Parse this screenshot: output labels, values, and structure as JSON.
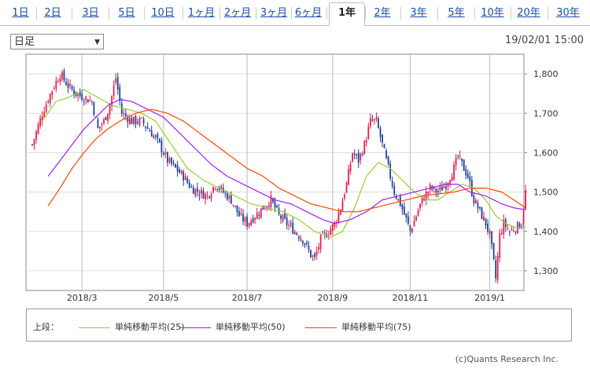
{
  "tabs": [
    {
      "label": "1日"
    },
    {
      "label": "2日"
    },
    {
      "label": "3日"
    },
    {
      "label": "5日"
    },
    {
      "label": "10日"
    },
    {
      "label": "1ヶ月"
    },
    {
      "label": "2ヶ月"
    },
    {
      "label": "3ヶ月"
    },
    {
      "label": "6ヶ月"
    },
    {
      "label": "1年",
      "active": true
    },
    {
      "label": "2年"
    },
    {
      "label": "3年"
    },
    {
      "label": "5年"
    },
    {
      "label": "10年"
    },
    {
      "label": "20年"
    },
    {
      "label": "30年"
    }
  ],
  "period_select": {
    "value": "日足"
  },
  "datetime": "19/02/01 15:00",
  "legend": {
    "label": "上段：",
    "items": [
      {
        "name": "単純移動平均(25)",
        "color": "#9acd32"
      },
      {
        "name": "単純移動平均(50)",
        "color": "#a020f0"
      },
      {
        "name": "単純移動平均(75)",
        "color": "#ff4500"
      }
    ]
  },
  "copyright": "(c)Quants Research Inc.",
  "chart_data": {
    "type": "candlestick",
    "ylim": [
      1250,
      1850
    ],
    "yticks": [
      1300,
      1400,
      1500,
      1600,
      1700,
      1800
    ],
    "ytick_labels": [
      "1,300",
      "1,400",
      "1,500",
      "1,600",
      "1,700",
      "1,800"
    ],
    "x_count": 244,
    "xticks": [
      {
        "index": 25,
        "label": "2018/3"
      },
      {
        "index": 66,
        "label": "2018/5"
      },
      {
        "index": 108,
        "label": "2018/7"
      },
      {
        "index": 151,
        "label": "2018/9"
      },
      {
        "index": 190,
        "label": "2018/11"
      },
      {
        "index": 230,
        "label": "2019/1"
      }
    ],
    "up_color": "#e8194a",
    "down_color": "#1c3f95",
    "price_anchors": [
      [
        0,
        1620
      ],
      [
        5,
        1700
      ],
      [
        10,
        1760
      ],
      [
        14,
        1800
      ],
      [
        18,
        1770
      ],
      [
        22,
        1750
      ],
      [
        26,
        1740
      ],
      [
        30,
        1730
      ],
      [
        33,
        1660
      ],
      [
        36,
        1680
      ],
      [
        39,
        1720
      ],
      [
        42,
        1790
      ],
      [
        45,
        1700
      ],
      [
        50,
        1680
      ],
      [
        55,
        1680
      ],
      [
        60,
        1650
      ],
      [
        64,
        1620
      ],
      [
        68,
        1580
      ],
      [
        72,
        1560
      ],
      [
        76,
        1540
      ],
      [
        80,
        1510
      ],
      [
        84,
        1500
      ],
      [
        88,
        1490
      ],
      [
        92,
        1520
      ],
      [
        96,
        1500
      ],
      [
        100,
        1480
      ],
      [
        104,
        1440
      ],
      [
        108,
        1420
      ],
      [
        112,
        1440
      ],
      [
        116,
        1460
      ],
      [
        120,
        1480
      ],
      [
        124,
        1440
      ],
      [
        128,
        1420
      ],
      [
        132,
        1400
      ],
      [
        136,
        1380
      ],
      [
        140,
        1340
      ],
      [
        142,
        1330
      ],
      [
        145,
        1380
      ],
      [
        149,
        1400
      ],
      [
        152,
        1420
      ],
      [
        155,
        1460
      ],
      [
        158,
        1520
      ],
      [
        161,
        1600
      ],
      [
        164,
        1580
      ],
      [
        167,
        1620
      ],
      [
        170,
        1680
      ],
      [
        173,
        1680
      ],
      [
        176,
        1620
      ],
      [
        179,
        1560
      ],
      [
        182,
        1500
      ],
      [
        185,
        1470
      ],
      [
        188,
        1430
      ],
      [
        190,
        1400
      ],
      [
        193,
        1440
      ],
      [
        196,
        1480
      ],
      [
        200,
        1510
      ],
      [
        204,
        1500
      ],
      [
        208,
        1520
      ],
      [
        212,
        1560
      ],
      [
        214,
        1590
      ],
      [
        216,
        1570
      ],
      [
        219,
        1540
      ],
      [
        222,
        1480
      ],
      [
        225,
        1450
      ],
      [
        228,
        1420
      ],
      [
        230,
        1390
      ],
      [
        232,
        1320
      ],
      [
        233,
        1280
      ],
      [
        235,
        1390
      ],
      [
        237,
        1420
      ],
      [
        240,
        1400
      ],
      [
        243,
        1410
      ],
      [
        246,
        1420
      ],
      [
        248,
        1500
      ]
    ],
    "series": [
      {
        "name": "単純移動平均(25)",
        "color": "#9acd32",
        "anchors": [
          [
            5,
            1680
          ],
          [
            12,
            1730
          ],
          [
            18,
            1740
          ],
          [
            26,
            1760
          ],
          [
            33,
            1740
          ],
          [
            40,
            1720
          ],
          [
            48,
            1710
          ],
          [
            55,
            1700
          ],
          [
            62,
            1680
          ],
          [
            70,
            1620
          ],
          [
            78,
            1560
          ],
          [
            86,
            1530
          ],
          [
            94,
            1510
          ],
          [
            102,
            1490
          ],
          [
            110,
            1470
          ],
          [
            118,
            1460
          ],
          [
            126,
            1450
          ],
          [
            134,
            1430
          ],
          [
            142,
            1400
          ],
          [
            150,
            1385
          ],
          [
            156,
            1400
          ],
          [
            162,
            1460
          ],
          [
            168,
            1540
          ],
          [
            174,
            1575
          ],
          [
            180,
            1560
          ],
          [
            186,
            1530
          ],
          [
            192,
            1500
          ],
          [
            198,
            1480
          ],
          [
            204,
            1480
          ],
          [
            210,
            1500
          ],
          [
            216,
            1520
          ],
          [
            222,
            1510
          ],
          [
            228,
            1480
          ],
          [
            233,
            1440
          ],
          [
            238,
            1420
          ],
          [
            243,
            1410
          ],
          [
            248,
            1410
          ]
        ]
      },
      {
        "name": "単純移動平均(50)",
        "color": "#a020f0",
        "anchors": [
          [
            8,
            1540
          ],
          [
            14,
            1580
          ],
          [
            20,
            1620
          ],
          [
            26,
            1660
          ],
          [
            32,
            1690
          ],
          [
            38,
            1720
          ],
          [
            44,
            1735
          ],
          [
            50,
            1730
          ],
          [
            58,
            1710
          ],
          [
            66,
            1690
          ],
          [
            74,
            1650
          ],
          [
            82,
            1610
          ],
          [
            90,
            1570
          ],
          [
            98,
            1540
          ],
          [
            106,
            1520
          ],
          [
            114,
            1500
          ],
          [
            122,
            1480
          ],
          [
            130,
            1470
          ],
          [
            138,
            1450
          ],
          [
            146,
            1430
          ],
          [
            152,
            1420
          ],
          [
            160,
            1430
          ],
          [
            168,
            1450
          ],
          [
            176,
            1480
          ],
          [
            184,
            1490
          ],
          [
            192,
            1500
          ],
          [
            200,
            1510
          ],
          [
            208,
            1520
          ],
          [
            214,
            1520
          ],
          [
            220,
            1500
          ],
          [
            228,
            1490
          ],
          [
            236,
            1470
          ],
          [
            242,
            1460
          ],
          [
            248,
            1455
          ]
        ]
      },
      {
        "name": "単純移動平均(75)",
        "color": "#ff4500",
        "anchors": [
          [
            8,
            1465
          ],
          [
            14,
            1510
          ],
          [
            20,
            1560
          ],
          [
            26,
            1600
          ],
          [
            32,
            1635
          ],
          [
            38,
            1660
          ],
          [
            44,
            1680
          ],
          [
            52,
            1700
          ],
          [
            60,
            1710
          ],
          [
            68,
            1700
          ],
          [
            76,
            1680
          ],
          [
            84,
            1650
          ],
          [
            92,
            1620
          ],
          [
            100,
            1590
          ],
          [
            108,
            1560
          ],
          [
            116,
            1540
          ],
          [
            124,
            1510
          ],
          [
            132,
            1490
          ],
          [
            140,
            1470
          ],
          [
            148,
            1460
          ],
          [
            156,
            1450
          ],
          [
            164,
            1450
          ],
          [
            172,
            1460
          ],
          [
            180,
            1470
          ],
          [
            188,
            1480
          ],
          [
            196,
            1490
          ],
          [
            204,
            1495
          ],
          [
            212,
            1500
          ],
          [
            220,
            1510
          ],
          [
            228,
            1510
          ],
          [
            236,
            1500
          ],
          [
            242,
            1480
          ],
          [
            248,
            1460
          ]
        ]
      }
    ]
  }
}
